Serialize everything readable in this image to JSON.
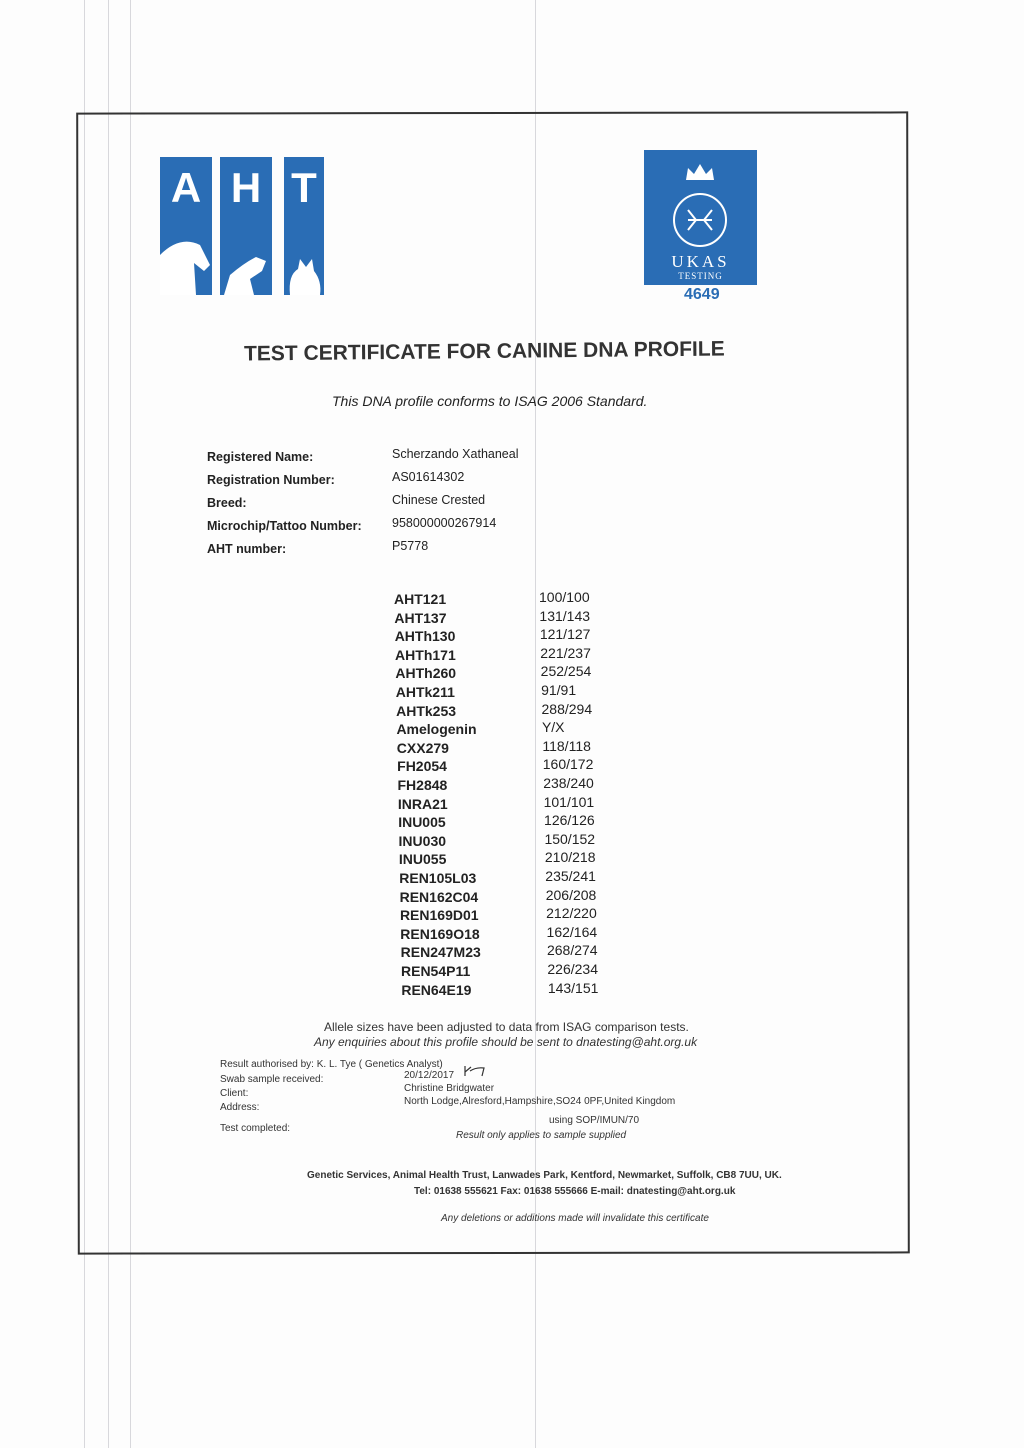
{
  "logos": {
    "aht_letters": [
      "A",
      "H",
      "T"
    ],
    "ukas_text": "UKAS",
    "ukas_sub": "TESTING",
    "ukas_number": "4649",
    "brand_color": "#2a6db5"
  },
  "title": "TEST CERTIFICATE FOR CANINE DNA PROFILE",
  "subtitle": "This DNA profile conforms to ISAG 2006 Standard.",
  "details": [
    {
      "label": "Registered Name:",
      "value": "Scherzando Xathaneal"
    },
    {
      "label": "Registration Number:",
      "value": "AS01614302"
    },
    {
      "label": "Breed:",
      "value": "Chinese Crested"
    },
    {
      "label": "Microchip/Tattoo Number:",
      "value": "958000000267914"
    },
    {
      "label": "AHT number:",
      "value": "P5778"
    }
  ],
  "markers": [
    {
      "name": "AHT121",
      "value": "100/100"
    },
    {
      "name": "AHT137",
      "value": "131/143"
    },
    {
      "name": "AHTh130",
      "value": "121/127"
    },
    {
      "name": "AHTh171",
      "value": "221/237"
    },
    {
      "name": "AHTh260",
      "value": "252/254"
    },
    {
      "name": "AHTk211",
      "value": "91/91"
    },
    {
      "name": "AHTk253",
      "value": "288/294"
    },
    {
      "name": "Amelogenin",
      "value": "Y/X"
    },
    {
      "name": "CXX279",
      "value": "118/118"
    },
    {
      "name": "FH2054",
      "value": "160/172"
    },
    {
      "name": "FH2848",
      "value": "238/240"
    },
    {
      "name": "INRA21",
      "value": "101/101"
    },
    {
      "name": "INU005",
      "value": "126/126"
    },
    {
      "name": "INU030",
      "value": "150/152"
    },
    {
      "name": "INU055",
      "value": "210/218"
    },
    {
      "name": "REN105L03",
      "value": "235/241"
    },
    {
      "name": "REN162C04",
      "value": "206/208"
    },
    {
      "name": "REN169D01",
      "value": "212/220"
    },
    {
      "name": "REN169O18",
      "value": "162/164"
    },
    {
      "name": "REN247M23",
      "value": "268/274"
    },
    {
      "name": "REN54P11",
      "value": "226/234"
    },
    {
      "name": "REN64E19",
      "value": "143/151"
    }
  ],
  "notes": {
    "allele": "Allele sizes have been adjusted to data from ISAG comparison tests.",
    "enquiries": "Any enquiries about this profile should be sent to dnatesting@aht.org.uk"
  },
  "result": {
    "authorised": "Result authorised by: K. L. Tye ( Genetics Analyst)",
    "swab_label": "Swab sample received:",
    "swab_value": "20/12/2017",
    "client_label": "Client:",
    "client_value": "Christine Bridgwater",
    "address_label": "Address:",
    "address_value": "North Lodge,Alresford,Hampshire,SO24 0PF,United Kingdom",
    "completed_label": "Test completed:",
    "method": "using SOP/IMUN/70",
    "applies": "Result only applies to sample supplied"
  },
  "footer": {
    "address": "Genetic Services, Animal Health Trust, Lanwades Park, Kentford, Newmarket, Suffolk, CB8 7UU, UK.",
    "contact": "Tel: 01638 555621  Fax: 01638 555666 E-mail: dnatesting@aht.org.uk",
    "disclaimer": "Any deletions or additions made will invalidate this certificate"
  }
}
